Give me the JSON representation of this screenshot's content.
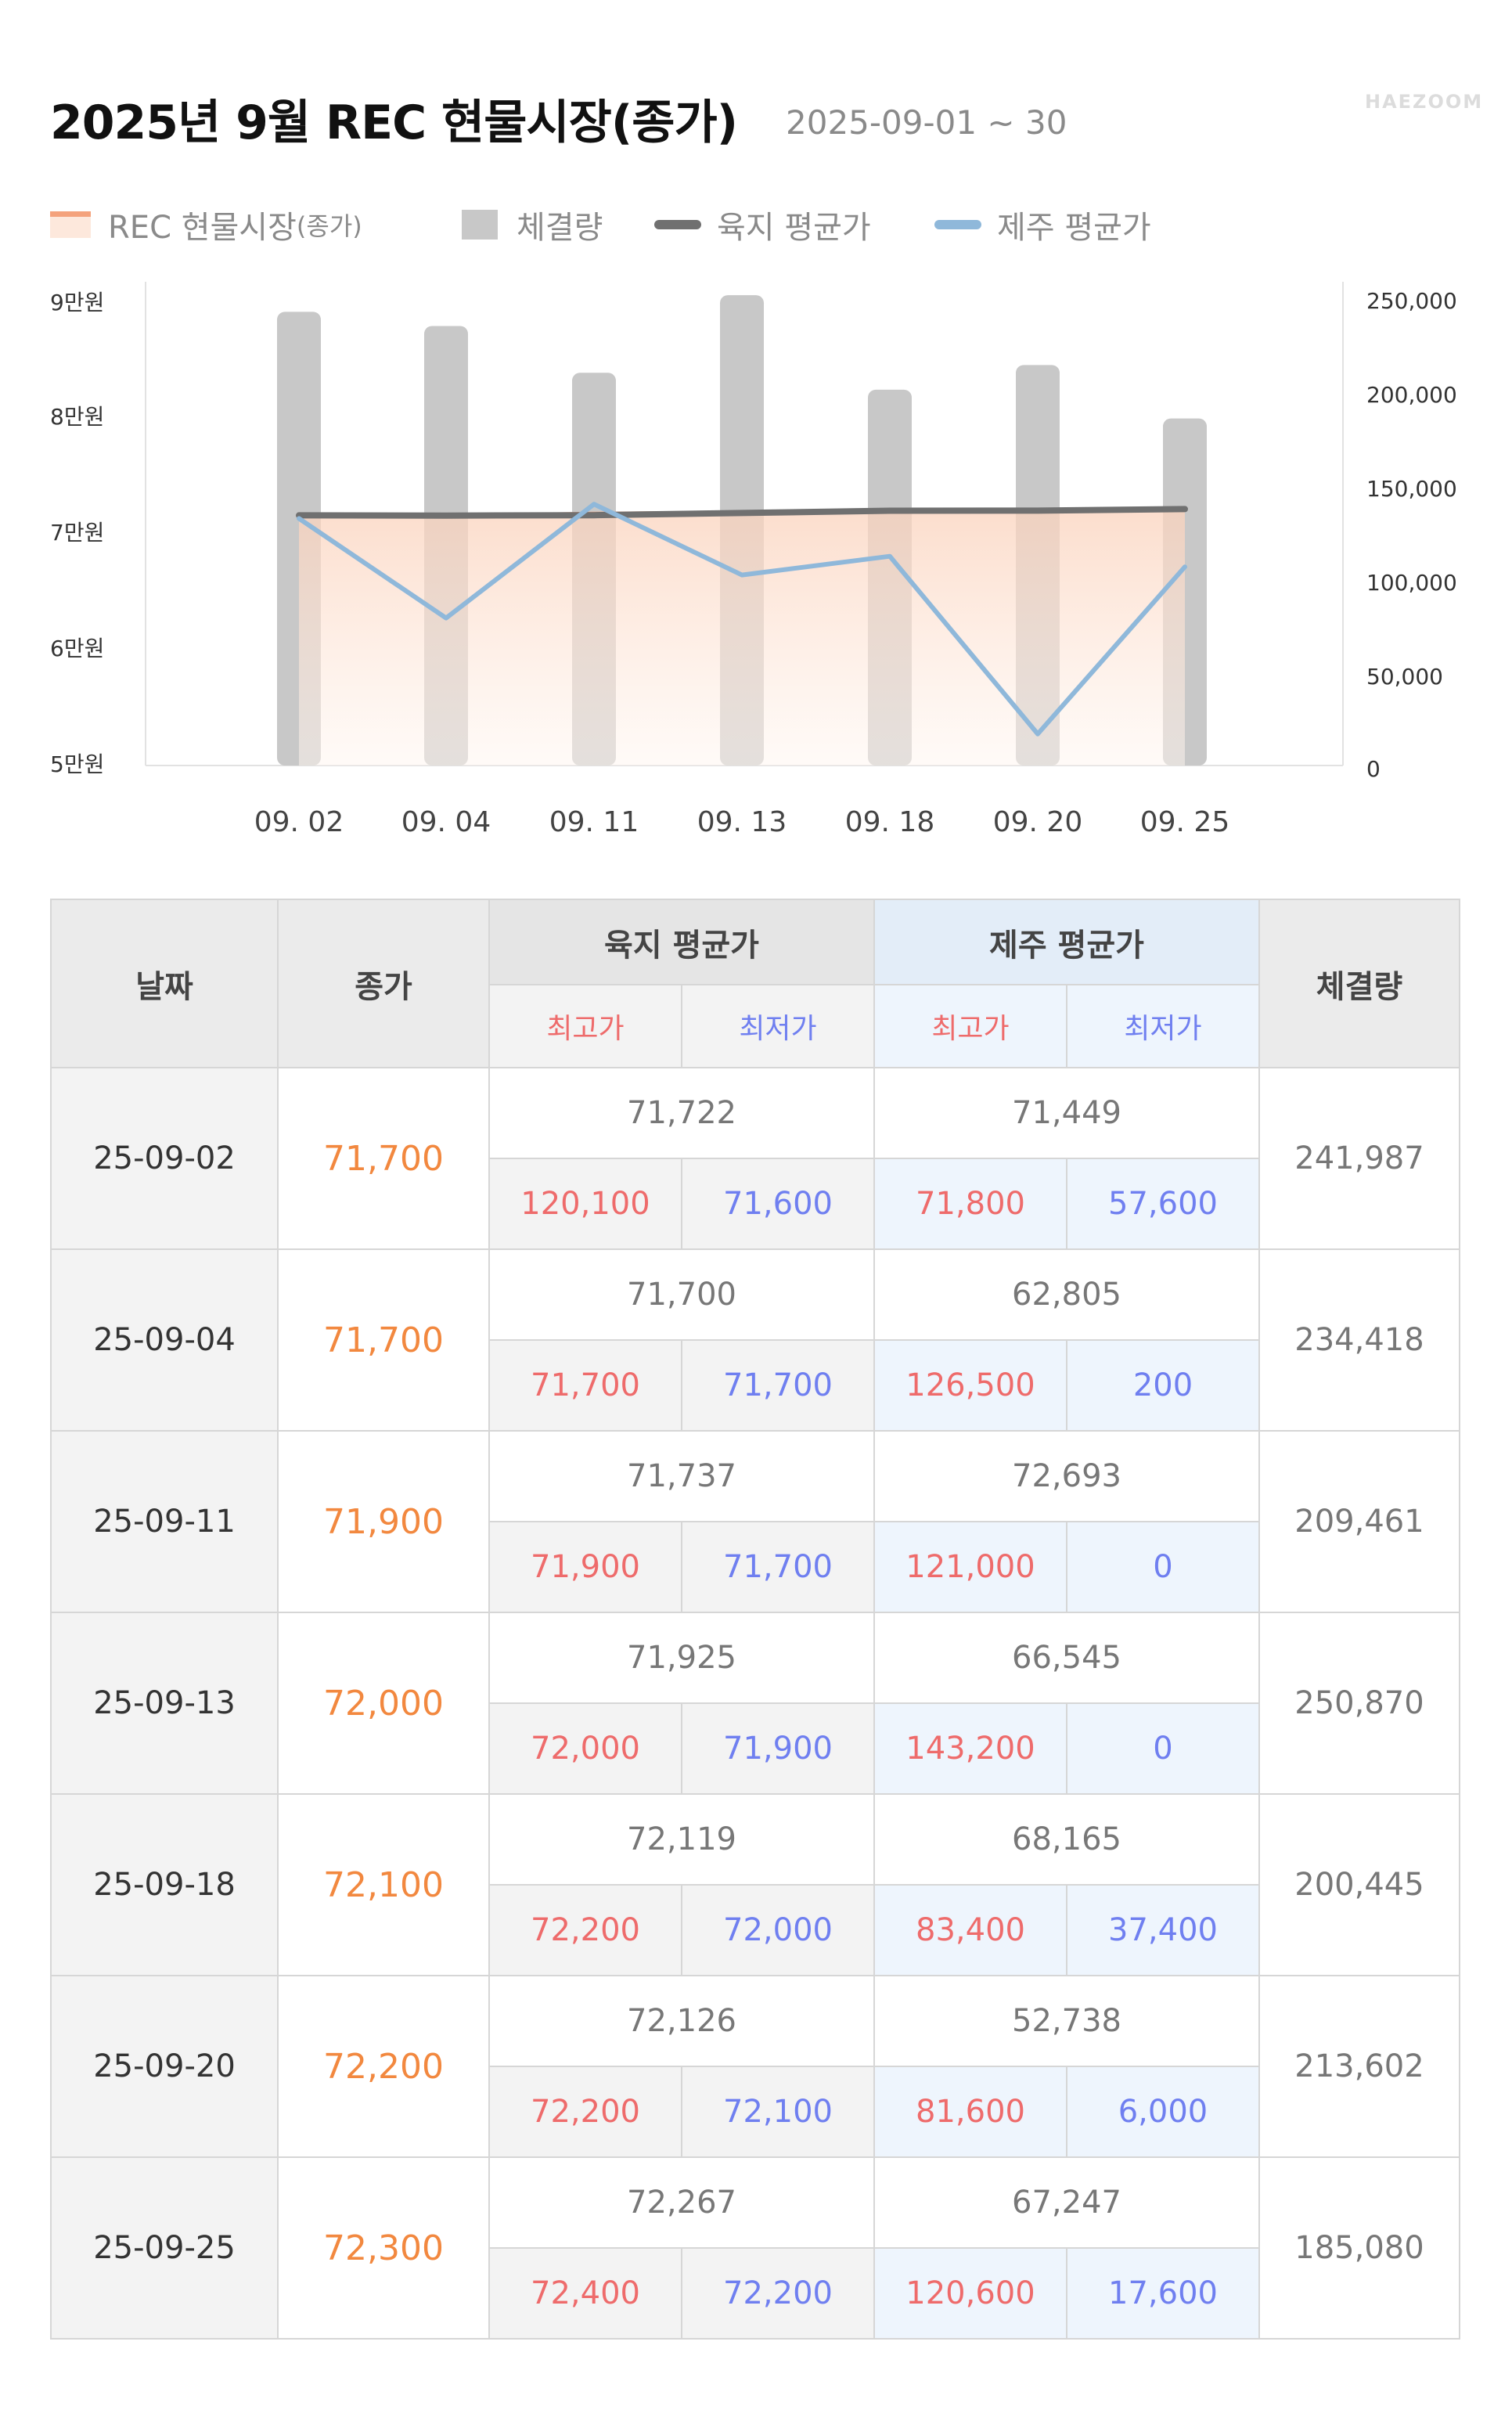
{
  "header": {
    "title": "2025년 9월 REC 현물시장(종가)",
    "subtitle": "2025-09-01 ~ 30",
    "brand": "HAEZOOM"
  },
  "legend": {
    "rec_main": "REC 현물시장",
    "rec_sub": "(종가)",
    "volume": "체결량",
    "land": "육지 평균가",
    "jeju": "제주 평균가"
  },
  "colors": {
    "close": "#f4a27c",
    "volume": "#c8c8c8",
    "land": "#707070",
    "jeju": "#8fb8da",
    "high": "#ee6b6b",
    "low": "#6f7ff0"
  },
  "chart_data": {
    "type": "bar",
    "categories": [
      "09. 02",
      "09. 04",
      "09. 11",
      "09. 13",
      "09. 18",
      "09. 20",
      "09. 25"
    ],
    "series": [
      {
        "name": "체결량",
        "type": "bar",
        "axis": "right",
        "values": [
          241987,
          234418,
          209461,
          250870,
          200445,
          213602,
          185080
        ]
      },
      {
        "name": "REC 현물시장(종가)",
        "type": "area",
        "axis": "left",
        "values": [
          71700,
          71700,
          71900,
          72000,
          72100,
          72200,
          72300
        ]
      },
      {
        "name": "육지 평균가",
        "type": "line",
        "axis": "left",
        "values": [
          71722,
          71700,
          71737,
          71925,
          72119,
          72126,
          72267
        ]
      },
      {
        "name": "제주 평균가",
        "type": "line",
        "axis": "left",
        "values": [
          71449,
          62805,
          72693,
          66545,
          68165,
          52738,
          67247
        ]
      }
    ],
    "left_axis": {
      "ticks": [
        "9만원",
        "8만원",
        "7만원",
        "6만원",
        "5만원"
      ],
      "range": [
        50000,
        92000
      ]
    },
    "right_axis": {
      "ticks": [
        "250,000",
        "200,000",
        "150,000",
        "100,000",
        "50,000",
        "0"
      ],
      "range": [
        0,
        258000
      ]
    }
  },
  "table": {
    "headers": {
      "date": "날짜",
      "close": "종가",
      "land": "육지 평균가",
      "jeju": "제주 평균가",
      "volume": "체결량",
      "high": "최고가",
      "low": "최저가"
    },
    "rows": [
      {
        "date": "25-09-02",
        "close": "71,700",
        "land_avg": "71,722",
        "jeju_avg": "71,449",
        "land_high": "120,100",
        "land_low": "71,600",
        "jeju_high": "71,800",
        "jeju_low": "57,600",
        "volume": "241,987"
      },
      {
        "date": "25-09-04",
        "close": "71,700",
        "land_avg": "71,700",
        "jeju_avg": "62,805",
        "land_high": "71,700",
        "land_low": "71,700",
        "jeju_high": "126,500",
        "jeju_low": "200",
        "volume": "234,418"
      },
      {
        "date": "25-09-11",
        "close": "71,900",
        "land_avg": "71,737",
        "jeju_avg": "72,693",
        "land_high": "71,900",
        "land_low": "71,700",
        "jeju_high": "121,000",
        "jeju_low": "0",
        "volume": "209,461"
      },
      {
        "date": "25-09-13",
        "close": "72,000",
        "land_avg": "71,925",
        "jeju_avg": "66,545",
        "land_high": "72,000",
        "land_low": "71,900",
        "jeju_high": "143,200",
        "jeju_low": "0",
        "volume": "250,870"
      },
      {
        "date": "25-09-18",
        "close": "72,100",
        "land_avg": "72,119",
        "jeju_avg": "68,165",
        "land_high": "72,200",
        "land_low": "72,000",
        "jeju_high": "83,400",
        "jeju_low": "37,400",
        "volume": "200,445"
      },
      {
        "date": "25-09-20",
        "close": "72,200",
        "land_avg": "72,126",
        "jeju_avg": "52,738",
        "land_high": "72,200",
        "land_low": "72,100",
        "jeju_high": "81,600",
        "jeju_low": "6,000",
        "volume": "213,602"
      },
      {
        "date": "25-09-25",
        "close": "72,300",
        "land_avg": "72,267",
        "jeju_avg": "67,247",
        "land_high": "72,400",
        "land_low": "72,200",
        "jeju_high": "120,600",
        "jeju_low": "17,600",
        "volume": "185,080"
      }
    ]
  }
}
